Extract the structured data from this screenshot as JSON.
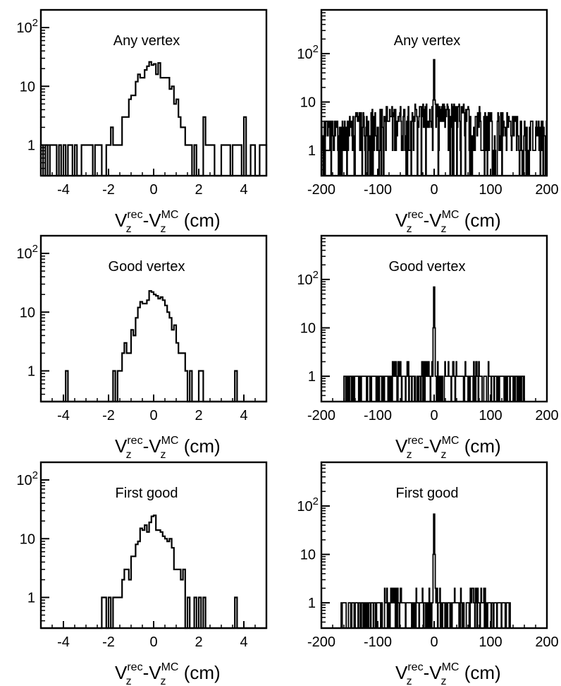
{
  "figure": {
    "xlabel_main": "V",
    "xlabel_sub_rec": "z",
    "xlabel_sup_rec": "rec",
    "xlabel_dash": "-V",
    "xlabel_sub_mc": "z",
    "xlabel_sup_mc": "MC",
    "xlabel_unit": " (cm)"
  },
  "chart_data": [
    {
      "type": "histogram",
      "label": "Any vertex",
      "xlim": [
        -5,
        5
      ],
      "ylim": [
        0.3,
        200
      ],
      "yscale": "log",
      "xticks": [
        -4,
        -2,
        0,
        2,
        4
      ],
      "yticks": [
        1,
        10,
        100
      ],
      "ytick_labels": [
        "1",
        "10",
        "10^2"
      ],
      "xlabel": "V_z^rec-V_z^MC (cm)",
      "bin_width": 0.1,
      "core_peak": 22,
      "core_sigma": 0.6,
      "baseline_counts": [
        1,
        2,
        3
      ],
      "range": [
        -5,
        5
      ]
    },
    {
      "type": "histogram",
      "label": "Any vertex",
      "xlim": [
        -200,
        200
      ],
      "ylim": [
        0.3,
        800
      ],
      "yscale": "log",
      "xticks": [
        -200,
        -100,
        0,
        100,
        200
      ],
      "yticks": [
        1,
        10,
        100
      ],
      "ytick_labels": [
        "1",
        "10",
        "10^2"
      ],
      "xlabel": "V_z^rec-V_z^MC (cm)",
      "bin_width": 1,
      "spike_value": 75,
      "spike_x": 0,
      "baseline_counts": [
        1,
        2,
        3,
        4,
        5,
        6,
        7
      ],
      "range": [
        -200,
        200
      ]
    },
    {
      "type": "histogram",
      "label": "Good vertex",
      "xlim": [
        -5,
        5
      ],
      "ylim": [
        0.3,
        200
      ],
      "yscale": "log",
      "xticks": [
        -4,
        -2,
        0,
        2,
        4
      ],
      "yticks": [
        1,
        10,
        100
      ],
      "ytick_labels": [
        "1",
        "10",
        "10^2"
      ],
      "xlabel": "V_z^rec-V_z^MC (cm)",
      "bin_width": 0.1,
      "core_peak": 20,
      "core_sigma": 0.55,
      "outliers": [
        -3.9,
        3.6
      ],
      "range": [
        -2.3,
        2.3
      ]
    },
    {
      "type": "histogram",
      "label": "Good vertex",
      "xlim": [
        -200,
        200
      ],
      "ylim": [
        0.3,
        800
      ],
      "yscale": "log",
      "xticks": [
        -200,
        -100,
        0,
        100,
        200
      ],
      "yticks": [
        1,
        10,
        100
      ],
      "ytick_labels": [
        "1",
        "10",
        "10^2"
      ],
      "xlabel": "V_z^rec-V_z^MC (cm)",
      "bin_width": 1,
      "spike_value": 70,
      "spike_x": 0,
      "baseline_counts": [
        1
      ],
      "range": [
        -160,
        160
      ]
    },
    {
      "type": "histogram",
      "label": "First good",
      "xlim": [
        -5,
        5
      ],
      "ylim": [
        0.3,
        200
      ],
      "yscale": "log",
      "xticks": [
        -4,
        -2,
        0,
        2,
        4
      ],
      "yticks": [
        1,
        10,
        100
      ],
      "ytick_labels": [
        "1",
        "10",
        "10^2"
      ],
      "xlabel": "V_z^rec-V_z^MC (cm)",
      "bin_width": 0.1,
      "core_peak": 20,
      "core_sigma": 0.55,
      "outliers": [
        3.6
      ],
      "range": [
        -2.3,
        2.3
      ]
    },
    {
      "type": "histogram",
      "label": "First good",
      "xlim": [
        -200,
        200
      ],
      "ylim": [
        0.3,
        800
      ],
      "yscale": "log",
      "xticks": [
        -200,
        -100,
        0,
        100,
        200
      ],
      "yticks": [
        1,
        10,
        100
      ],
      "ytick_labels": [
        "1",
        "10",
        "10^2"
      ],
      "xlabel": "V_z^rec-V_z^MC (cm)",
      "bin_width": 1,
      "spike_value": 68,
      "spike_x": 0,
      "baseline_counts": [
        1
      ],
      "range": [
        -165,
        135
      ]
    }
  ]
}
